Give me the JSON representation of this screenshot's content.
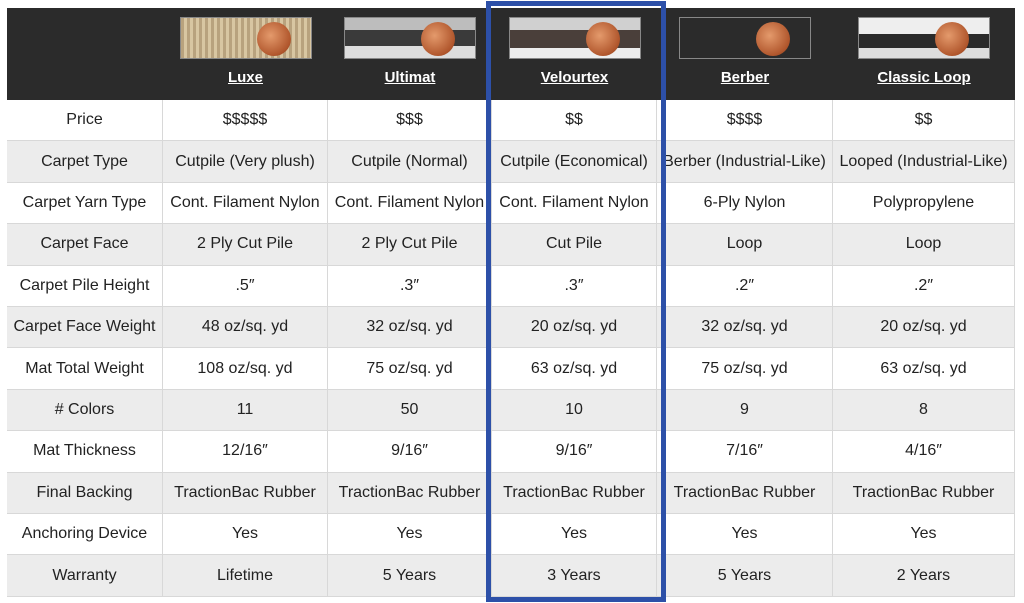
{
  "table": {
    "columns": [
      "Luxe",
      "Ultimat",
      "Velourtex",
      "Berber",
      "Classic Loop"
    ],
    "rows": [
      [
        "Price",
        "$$$$$",
        "$$$",
        "$$",
        "$$$$",
        "$$"
      ],
      [
        "Carpet Type",
        "Cutpile (Very plush)",
        "Cutpile (Normal)",
        "Cutpile (Economical)",
        "Berber (Industrial-Like)",
        "Looped (Industrial-Like)"
      ],
      [
        "Carpet Yarn Type",
        "Cont. Filament Nylon",
        "Cont. Filament Nylon",
        "Cont. Filament Nylon",
        "6-Ply Nylon",
        "Polypropylene"
      ],
      [
        "Carpet Face",
        "2 Ply Cut Pile",
        "2 Ply Cut Pile",
        "Cut Pile",
        "Loop",
        "Loop"
      ],
      [
        "Carpet Pile Height",
        ".5″",
        ".3″",
        ".3″",
        ".2″",
        ".2″"
      ],
      [
        "Carpet Face Weight",
        "48 oz/sq. yd",
        "32 oz/sq. yd",
        "20 oz/sq. yd",
        "32 oz/sq. yd",
        "20 oz/sq. yd"
      ],
      [
        "Mat Total Weight",
        "108 oz/sq. yd",
        "75 oz/sq. yd",
        "63 oz/sq. yd",
        "75 oz/sq. yd",
        "63 oz/sq. yd"
      ],
      [
        "# Colors",
        "11",
        "50",
        "10",
        "9",
        "8"
      ],
      [
        "Mat Thickness",
        "12/16″",
        "9/16″",
        "9/16″",
        "7/16″",
        "4/16″"
      ],
      [
        "Final Backing",
        "TractionBac Rubber",
        "TractionBac Rubber",
        "TractionBac Rubber",
        "TractionBac Rubber",
        "TractionBac Rubber"
      ],
      [
        "Anchoring Device",
        "Yes",
        "Yes",
        "Yes",
        "Yes",
        "Yes"
      ],
      [
        "Warranty",
        "Lifetime",
        "5 Years",
        "3 Years",
        "5 Years",
        "2 Years"
      ]
    ]
  }
}
